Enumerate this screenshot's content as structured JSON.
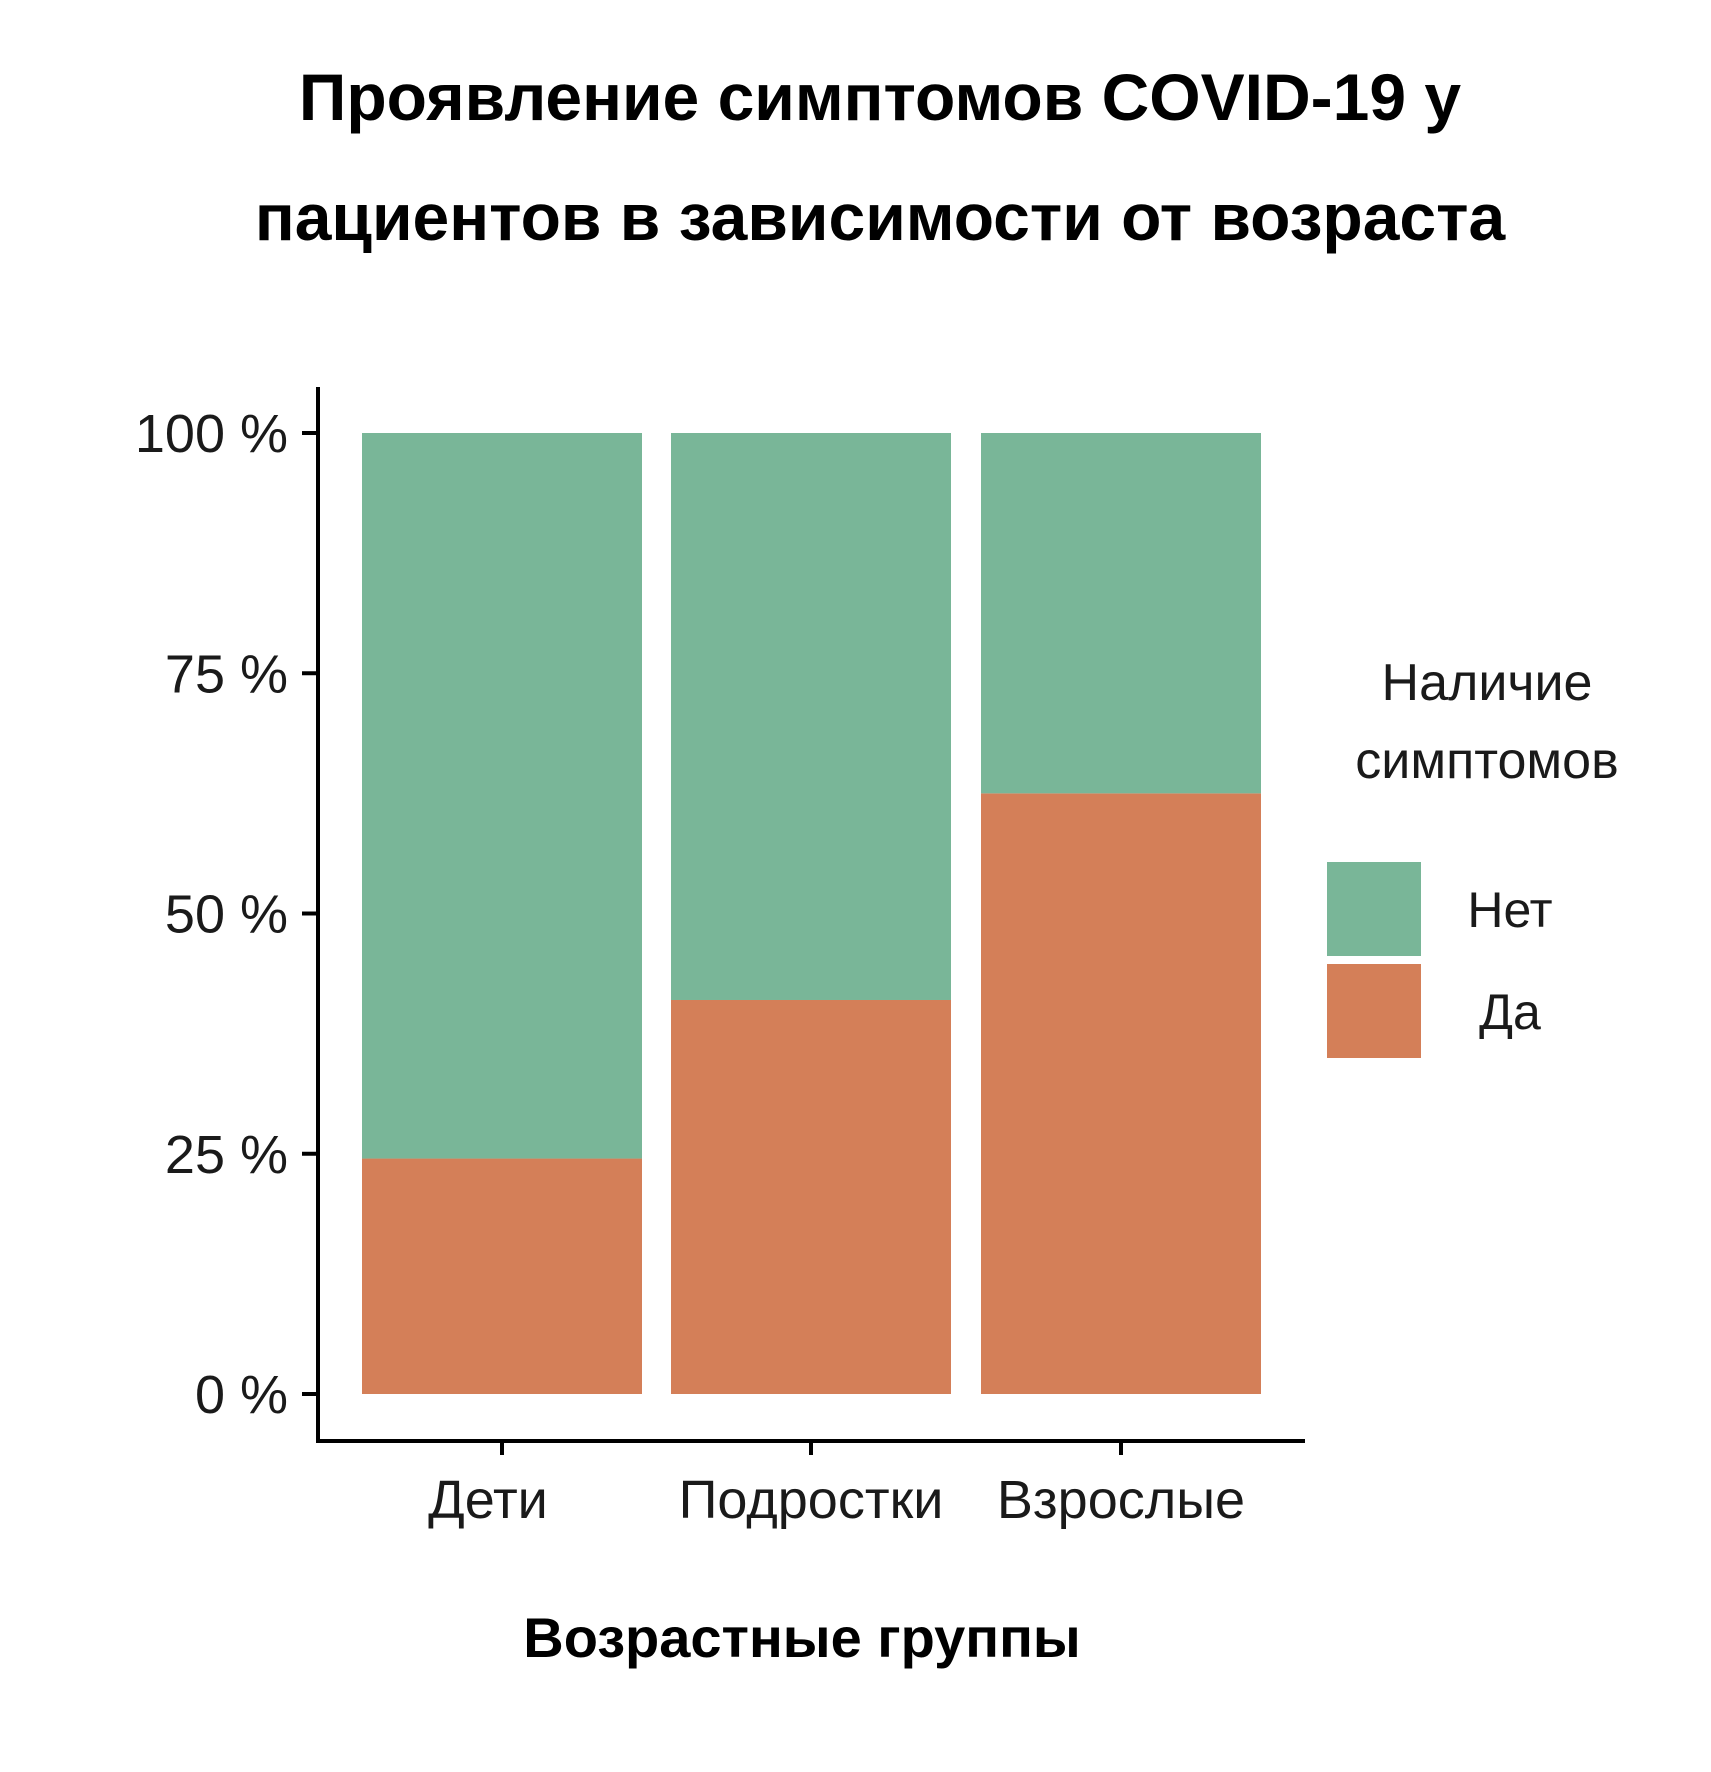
{
  "chart_data": {
    "type": "bar",
    "stacked": true,
    "title_lines": [
      "Проявление симптомов COVID-19 у",
      "пациентов в зависимости от возраста"
    ],
    "xlabel": "Возрастные группы",
    "ylabel": "",
    "categories": [
      "Дети",
      "Подростки",
      "Взрослые"
    ],
    "ylim": [
      0,
      100
    ],
    "yticks": [
      0,
      25,
      50,
      75,
      100
    ],
    "ytick_labels": [
      "0 %",
      "25 %",
      "50 %",
      "75 %",
      "100 %"
    ],
    "series": [
      {
        "name": "Да",
        "color": "#d47f58",
        "values": [
          24.5,
          41,
          62.5
        ]
      },
      {
        "name": "Нет",
        "color": "#79b698",
        "values": [
          75.5,
          59,
          37.5
        ]
      }
    ],
    "legend": {
      "title_lines": [
        "Наличие",
        "симптомов"
      ],
      "position": "right",
      "order": [
        "Нет",
        "Да"
      ]
    },
    "grid": false
  }
}
